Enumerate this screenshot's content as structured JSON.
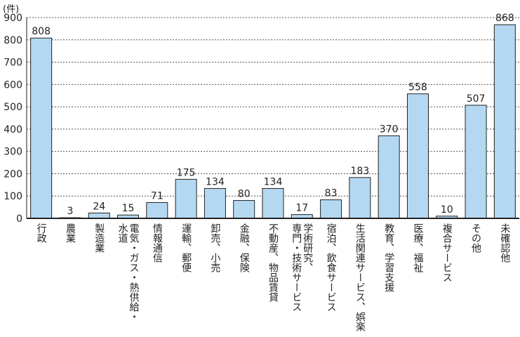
{
  "chart_data": {
    "type": "bar",
    "unit_label": "(件)",
    "categories": [
      "行政",
      "農業",
      "製造業",
      "電気・ガス・熱供給・\n水道",
      "情報通信",
      "運輸、郵便",
      "卸売、小売",
      "金融、保険",
      "不動産、物品賃貸",
      "学術研究、\n専門・技術サービス",
      "宿泊、飲食サービス",
      "生活関連サービス、娯楽",
      "教育、学習支援",
      "医療、福祉",
      "複合サービス",
      "その他",
      "未確認他"
    ],
    "values": [
      808,
      3,
      24,
      15,
      71,
      175,
      134,
      80,
      134,
      17,
      83,
      183,
      370,
      558,
      10,
      507,
      868
    ],
    "ylim": [
      0,
      900
    ],
    "yticks": [
      0,
      100,
      200,
      300,
      400,
      500,
      600,
      700,
      800,
      900
    ],
    "grid": true,
    "bar_color": "#b4d8f2",
    "bar_outline": "#222222"
  }
}
